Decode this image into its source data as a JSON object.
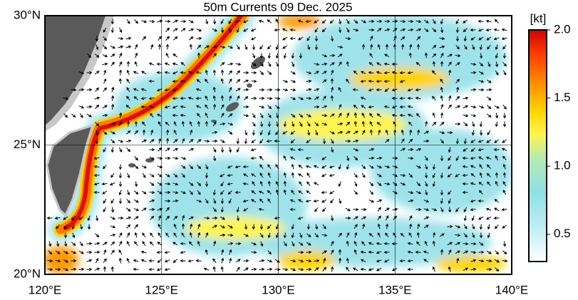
{
  "map": {
    "title": "50m Currents  09 Dec. 2025",
    "lonlim": [
      120,
      140
    ],
    "latlim": [
      20,
      30
    ],
    "lon_ticks": [
      {
        "value": 120,
        "label": "120°E"
      },
      {
        "value": 125,
        "label": "125°E"
      },
      {
        "value": 130,
        "label": "130°E"
      },
      {
        "value": 135,
        "label": "135°E"
      },
      {
        "value": 140,
        "label": "140°E"
      }
    ],
    "lat_ticks": [
      {
        "value": 20,
        "label": "20°N"
      },
      {
        "value": 25,
        "label": "25°N"
      },
      {
        "value": 30,
        "label": "30°N"
      }
    ],
    "colorbar": {
      "unit": "[kt]",
      "lim": [
        0.3,
        2.0
      ],
      "ticks": [
        0.5,
        {
          "value": 1.0,
          "label": "1.0"
        },
        1.5,
        {
          "value": 2.0,
          "label": "2.0"
        }
      ]
    }
  }
}
